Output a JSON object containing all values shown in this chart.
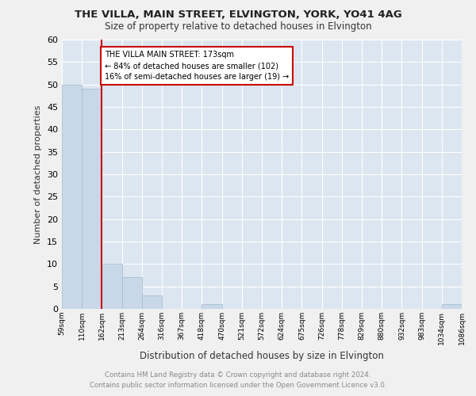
{
  "title": "THE VILLA, MAIN STREET, ELVINGTON, YORK, YO41 4AG",
  "subtitle": "Size of property relative to detached houses in Elvington",
  "xlabel": "Distribution of detached houses by size in Elvington",
  "ylabel": "Number of detached properties",
  "bin_labels": [
    "59sqm",
    "110sqm",
    "162sqm",
    "213sqm",
    "264sqm",
    "316sqm",
    "367sqm",
    "418sqm",
    "470sqm",
    "521sqm",
    "572sqm",
    "624sqm",
    "675sqm",
    "726sqm",
    "778sqm",
    "829sqm",
    "880sqm",
    "932sqm",
    "983sqm",
    "1034sqm",
    "1086sqm"
  ],
  "bar_values": [
    50,
    49,
    10,
    7,
    3,
    0,
    0,
    1,
    0,
    0,
    0,
    0,
    0,
    0,
    0,
    0,
    0,
    0,
    0,
    1
  ],
  "bar_color": "#c8d8e8",
  "bar_edge_color": "#a0b8d0",
  "property_line_color": "#cc0000",
  "property_line_bin_edge": 2,
  "ylim": [
    0,
    60
  ],
  "yticks": [
    0,
    5,
    10,
    15,
    20,
    25,
    30,
    35,
    40,
    45,
    50,
    55,
    60
  ],
  "annotation_text": "THE VILLA MAIN STREET: 173sqm\n← 84% of detached houses are smaller (102)\n16% of semi-detached houses are larger (19) →",
  "annotation_box_edge_color": "#cc0000",
  "footer_line1": "Contains HM Land Registry data © Crown copyright and database right 2024.",
  "footer_line2": "Contains public sector information licensed under the Open Government Licence v3.0.",
  "plot_bg_color": "#dce6f0",
  "fig_bg_color": "#f0f0f0",
  "grid_color": "#ffffff"
}
